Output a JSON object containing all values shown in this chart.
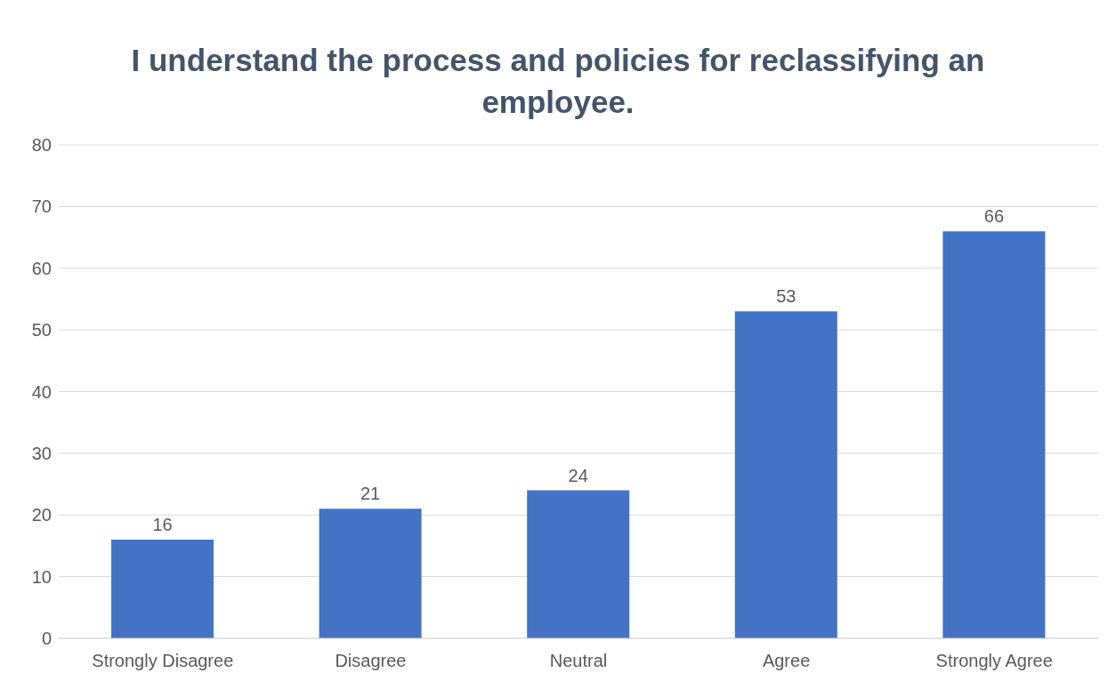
{
  "chart_data": {
    "type": "bar",
    "title": "I understand the process and policies for reclassifying an employee.",
    "categories": [
      "Strongly Disagree",
      "Disagree",
      "Neutral",
      "Agree",
      "Strongly Agree"
    ],
    "values": [
      16,
      21,
      24,
      53,
      66
    ],
    "color": "#4472c4",
    "ylim": [
      0,
      80
    ],
    "yticks": [
      0,
      10,
      20,
      30,
      40,
      50,
      60,
      70,
      80
    ],
    "grid": "y",
    "data_labels": true
  }
}
